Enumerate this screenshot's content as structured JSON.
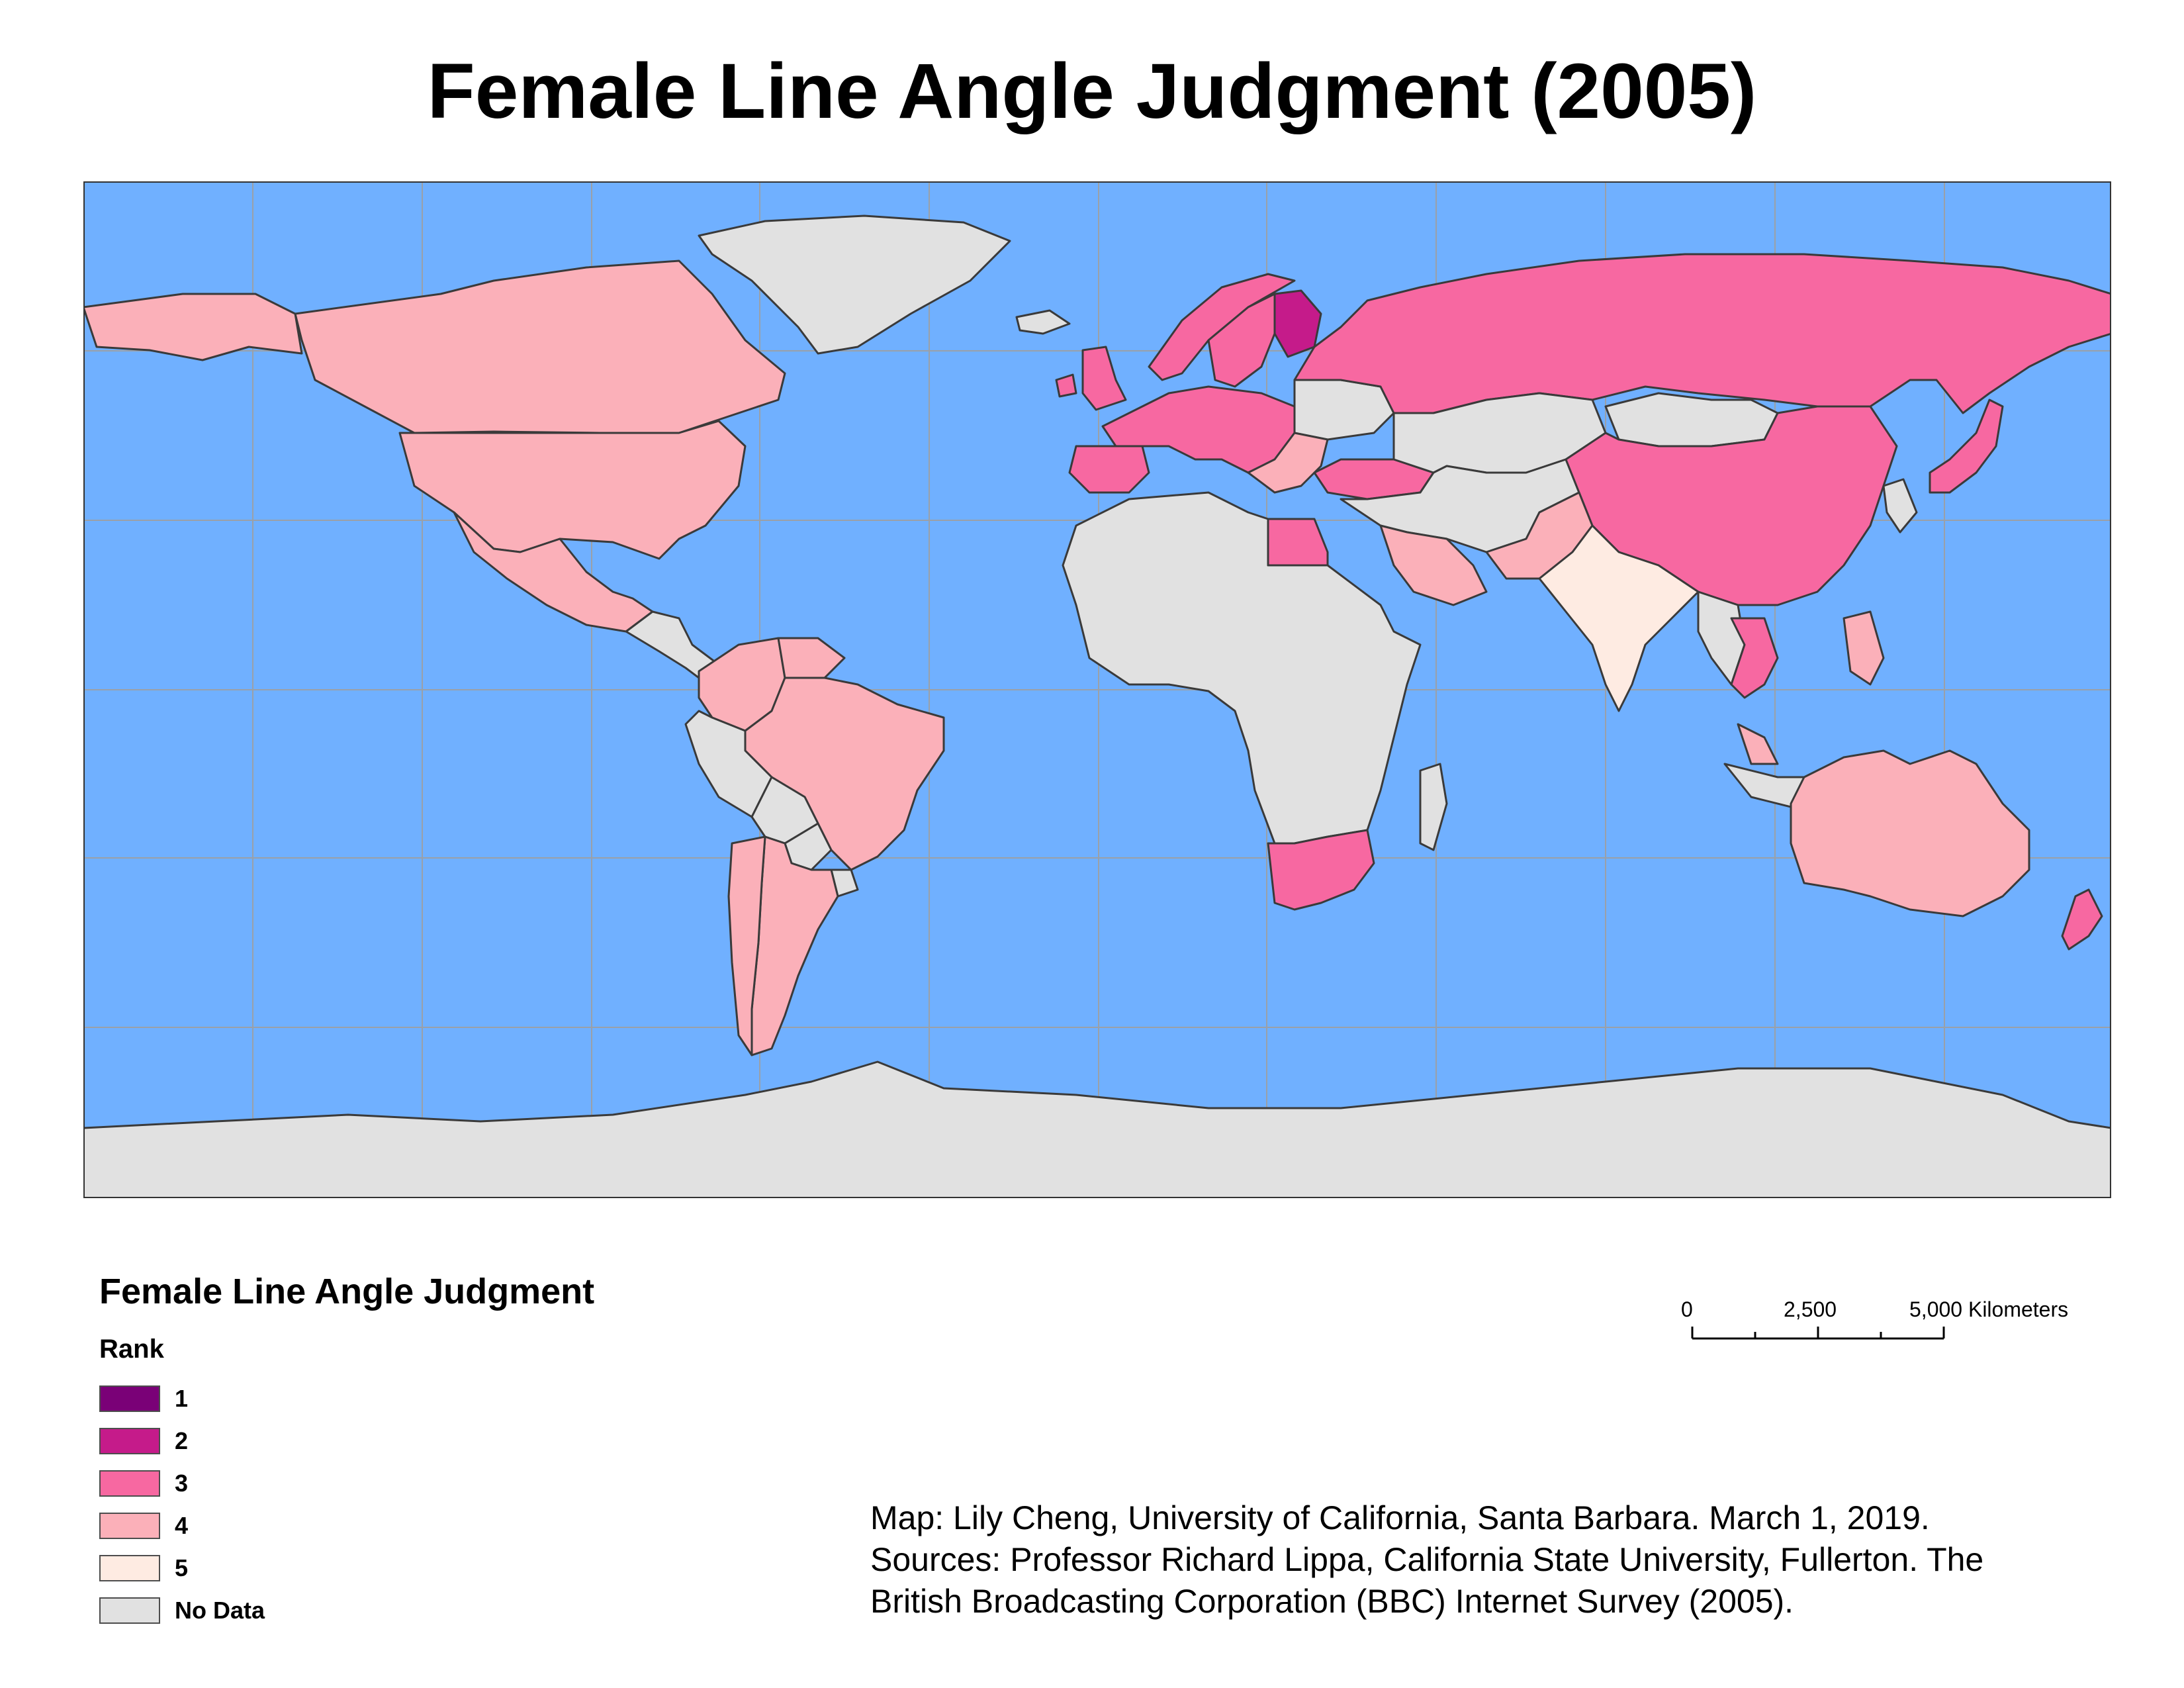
{
  "title": "Female Line Angle Judgment (2005)",
  "map": {
    "ocean_color": "#70b0ff",
    "graticule_color": "#9aa0a8",
    "border_color": "#3a3a3a",
    "regions": [
      {
        "name": "Greenland",
        "rank": "No Data"
      },
      {
        "name": "Canada",
        "rank": "4"
      },
      {
        "name": "United States",
        "rank": "4"
      },
      {
        "name": "Mexico",
        "rank": "4"
      },
      {
        "name": "Central America",
        "rank": "No Data"
      },
      {
        "name": "Colombia",
        "rank": "4"
      },
      {
        "name": "Venezuela",
        "rank": "4"
      },
      {
        "name": "Brazil",
        "rank": "4"
      },
      {
        "name": "Peru",
        "rank": "No Data"
      },
      {
        "name": "Bolivia",
        "rank": "No Data"
      },
      {
        "name": "Paraguay",
        "rank": "No Data"
      },
      {
        "name": "Uruguay",
        "rank": "No Data"
      },
      {
        "name": "Argentina",
        "rank": "4"
      },
      {
        "name": "Chile",
        "rank": "4"
      },
      {
        "name": "Iceland",
        "rank": "No Data"
      },
      {
        "name": "Ireland",
        "rank": "3"
      },
      {
        "name": "United Kingdom",
        "rank": "3"
      },
      {
        "name": "Norway",
        "rank": "3"
      },
      {
        "name": "Sweden",
        "rank": "3"
      },
      {
        "name": "Finland",
        "rank": "2"
      },
      {
        "name": "Western Europe",
        "rank": "3"
      },
      {
        "name": "Iberia",
        "rank": "3"
      },
      {
        "name": "Eastern Europe",
        "rank": "No Data"
      },
      {
        "name": "Balkans",
        "rank": "4"
      },
      {
        "name": "Turkey",
        "rank": "3"
      },
      {
        "name": "Russia",
        "rank": "3"
      },
      {
        "name": "Central Asia",
        "rank": "No Data"
      },
      {
        "name": "Middle East",
        "rank": "No Data"
      },
      {
        "name": "Saudi Arabia",
        "rank": "4"
      },
      {
        "name": "Egypt",
        "rank": "3"
      },
      {
        "name": "Africa",
        "rank": "No Data"
      },
      {
        "name": "South Africa",
        "rank": "3"
      },
      {
        "name": "Madagascar",
        "rank": "No Data"
      },
      {
        "name": "Pakistan",
        "rank": "4"
      },
      {
        "name": "India",
        "rank": "5"
      },
      {
        "name": "China",
        "rank": "3"
      },
      {
        "name": "Mongolia",
        "rank": "No Data"
      },
      {
        "name": "Korea",
        "rank": "No Data"
      },
      {
        "name": "Japan",
        "rank": "3"
      },
      {
        "name": "Myanmar",
        "rank": "No Data"
      },
      {
        "name": "Thailand",
        "rank": "3"
      },
      {
        "name": "Malaysia",
        "rank": "4"
      },
      {
        "name": "Philippines",
        "rank": "4"
      },
      {
        "name": "Indonesia",
        "rank": "No Data"
      },
      {
        "name": "Australia",
        "rank": "4"
      },
      {
        "name": "New Zealand",
        "rank": "3"
      },
      {
        "name": "Antarctica",
        "rank": "No Data"
      }
    ]
  },
  "legend": {
    "title": "Female Line Angle Judgment",
    "subtitle": "Rank",
    "items": [
      {
        "label": "1",
        "color": "#7a0177"
      },
      {
        "label": "2",
        "color": "#c51b8a"
      },
      {
        "label": "3",
        "color": "#f768a1"
      },
      {
        "label": "4",
        "color": "#fbb0b9"
      },
      {
        "label": "5",
        "color": "#feebe2"
      },
      {
        "label": "No Data",
        "color": "#e1e1e1"
      }
    ]
  },
  "scalebar": {
    "labels": [
      "0",
      "2,500",
      "5,000 Kilometers"
    ]
  },
  "credits": {
    "line1": "Map: Lily Cheng, University of California, Santa Barbara. March 1, 2019.",
    "line2": "Sources: Professor Richard Lippa, California State University, Fullerton. The",
    "line3": "British Broadcasting Corporation (BBC) Internet Survey (2005)."
  }
}
